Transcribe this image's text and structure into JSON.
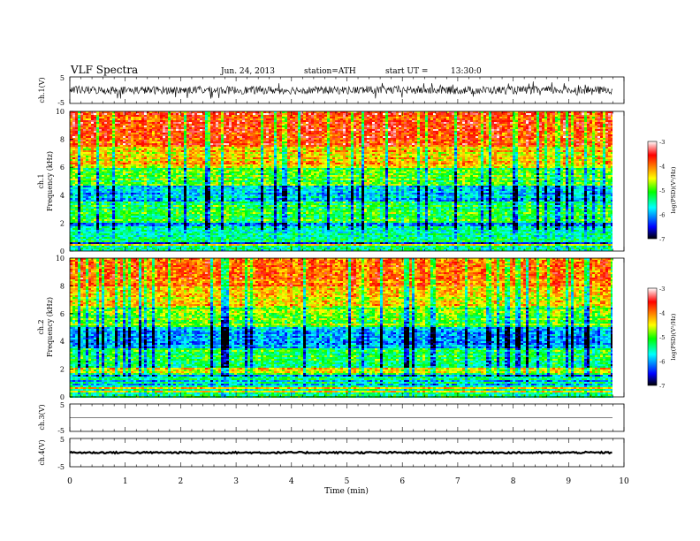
{
  "header": {
    "title": "VLF Spectra",
    "date": "Jun. 24, 2013",
    "station": "station=ATH",
    "start": "start UT =",
    "start_time": "13:30:0"
  },
  "colors": {
    "colormap": [
      "#000000",
      "#0000ff",
      "#00ffff",
      "#00ff00",
      "#ffff00",
      "#ff8000",
      "#ff0000",
      "#ffffff"
    ]
  },
  "chart_data": [
    {
      "type": "line",
      "panel": "ch1-waveform",
      "ylabel": "ch.1(V)",
      "ylim": [
        -5,
        5
      ],
      "yticks": [
        "5",
        "-5"
      ],
      "x": [
        0,
        9.8
      ],
      "description_values": {
        "baseline_v": 0,
        "noise_amplitude_v": 1.5
      }
    },
    {
      "type": "heatmap",
      "panel": "ch1-spectrogram",
      "ylabel_channel": "ch.1",
      "ylabel": "Frequency (kHz)",
      "ylim": [
        0,
        10
      ],
      "yticks": [
        "0",
        "2",
        "4",
        "6",
        "8",
        "10"
      ],
      "xlim": [
        0,
        10
      ],
      "colorbar": {
        "label": "log(PSD)(V²/Hz)",
        "range": [
          -7,
          -3
        ],
        "ticks": [
          "-3",
          "-4",
          "-5",
          "-6",
          "-7"
        ]
      },
      "frequency_bands_khz": [
        {
          "from": 0,
          "to": 2,
          "logpsd": -5.4
        },
        {
          "from": 2,
          "to": 3.5,
          "logpsd": -5.2
        },
        {
          "from": 3.5,
          "to": 4.7,
          "logpsd": -5.9
        },
        {
          "from": 4.7,
          "to": 6,
          "logpsd": -5.0
        },
        {
          "from": 6,
          "to": 7.5,
          "logpsd": -4.3
        },
        {
          "from": 7.5,
          "to": 10,
          "logpsd": -3.7
        }
      ]
    },
    {
      "type": "heatmap",
      "panel": "ch2-spectrogram",
      "ylabel_channel": "ch.2",
      "ylabel": "Frequency (kHz)",
      "ylim": [
        0,
        10
      ],
      "yticks": [
        "0",
        "2",
        "4",
        "6",
        "8",
        "10"
      ],
      "xlim": [
        0,
        10
      ],
      "colorbar": {
        "label": "log(PSD)(V²/Hz)",
        "range": [
          -7,
          -3
        ],
        "ticks": [
          "-3",
          "-4",
          "-5",
          "-6",
          "-7"
        ]
      },
      "frequency_bands_khz": [
        {
          "from": 0,
          "to": 2,
          "logpsd": -5.3
        },
        {
          "from": 2,
          "to": 3.5,
          "logpsd": -5.2
        },
        {
          "from": 3.5,
          "to": 5,
          "logpsd": -5.9
        },
        {
          "from": 5,
          "to": 6.5,
          "logpsd": -4.9
        },
        {
          "from": 6.5,
          "to": 8,
          "logpsd": -4.4
        },
        {
          "from": 8,
          "to": 10,
          "logpsd": -3.9
        }
      ]
    },
    {
      "type": "line",
      "panel": "ch3-waveform",
      "ylabel": "ch.3(V)",
      "ylim": [
        -5,
        5
      ],
      "yticks": [
        "5",
        "-5"
      ],
      "x": [
        0,
        9.8
      ],
      "description_values": {
        "baseline_v": 0,
        "noise_amplitude_v": 0.05
      }
    },
    {
      "type": "line",
      "panel": "ch4-waveform",
      "ylabel": "ch.4(V)",
      "ylim": [
        -5,
        5
      ],
      "yticks": [
        "5",
        "-5"
      ],
      "x": [
        0,
        9.8
      ],
      "description_values": {
        "baseline_v": 0,
        "noise_amplitude_v": 0.3
      }
    }
  ],
  "xaxis": {
    "label": "Time (min)",
    "range": [
      0,
      10
    ],
    "ticks": [
      "0",
      "1",
      "2",
      "3",
      "4",
      "5",
      "6",
      "7",
      "8",
      "9",
      "10"
    ]
  }
}
